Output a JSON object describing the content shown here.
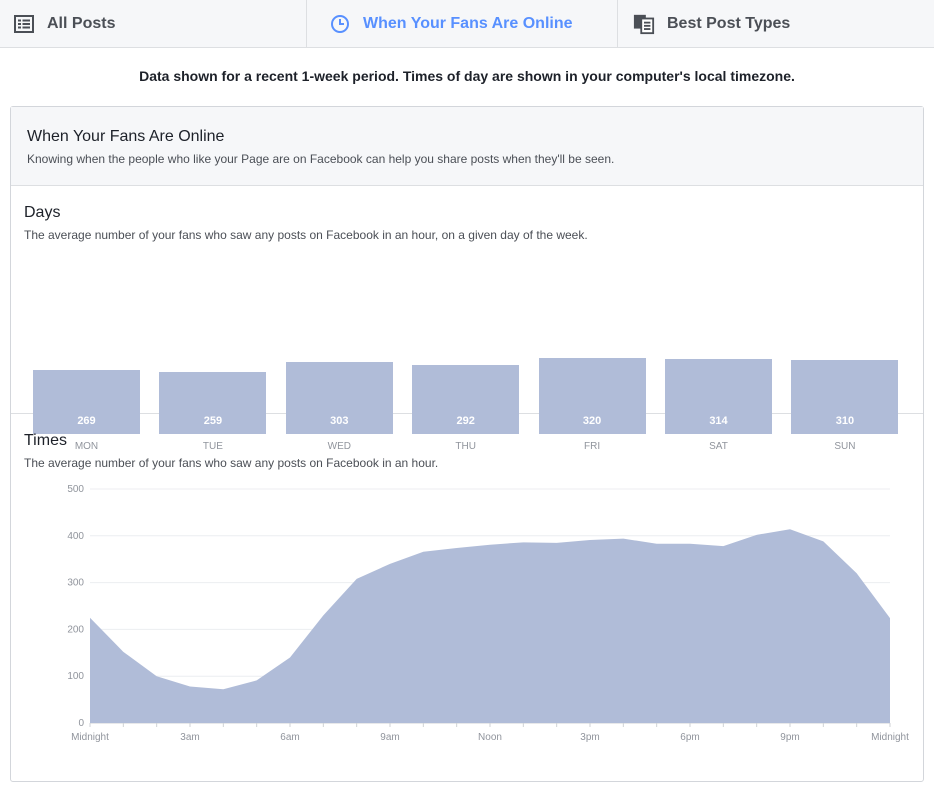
{
  "tabs": [
    {
      "label": "All Posts",
      "icon": "list-icon",
      "active": false
    },
    {
      "label": "When Your Fans Are Online",
      "icon": "clock-icon",
      "active": true
    },
    {
      "label": "Best Post Types",
      "icon": "post-types-icon",
      "active": false
    }
  ],
  "notice": "Data shown for a recent 1-week period. Times of day are shown in your computer's local timezone.",
  "card": {
    "title": "When Your Fans Are Online",
    "subtitle": "Knowing when the people who like your Page are on Facebook can help you share posts when they'll be seen."
  },
  "days_section": {
    "title": "Days",
    "subtitle": "The average number of your fans who saw any posts on Facebook in an hour, on a given day of the week."
  },
  "times_section": {
    "title": "Times",
    "subtitle": "The average number of your fans who saw any posts on Facebook in an hour."
  },
  "colors": {
    "accent": "#5890ff",
    "bar": "#b0bcd8",
    "area": "#b0bcd8"
  },
  "chart_data": [
    {
      "type": "bar",
      "categories": [
        "MON",
        "TUE",
        "WED",
        "THU",
        "FRI",
        "SAT",
        "SUN"
      ],
      "values": [
        269,
        259,
        303,
        292,
        320,
        314,
        310
      ],
      "value_labels": [
        "269",
        "259",
        "303",
        "292",
        "320",
        "314",
        "310"
      ]
    },
    {
      "type": "area",
      "x_ticks": [
        "Midnight",
        "3am",
        "6am",
        "9am",
        "Noon",
        "3pm",
        "6pm",
        "9pm",
        "Midnight"
      ],
      "y_ticks": [
        "0",
        "100",
        "200",
        "300",
        "400",
        "500"
      ],
      "ylim": [
        0,
        500
      ],
      "xlim": [
        0,
        24
      ],
      "grid": true,
      "x": [
        0,
        1,
        2,
        3,
        4,
        5,
        6,
        7,
        8,
        9,
        10,
        11,
        12,
        13,
        14,
        15,
        16,
        17,
        18,
        19,
        20,
        21,
        22,
        23,
        24
      ],
      "values": [
        225,
        152,
        100,
        78,
        72,
        91,
        140,
        230,
        308,
        340,
        366,
        374,
        381,
        386,
        385,
        391,
        394,
        383,
        383,
        378,
        402,
        414,
        388,
        320,
        224
      ]
    }
  ]
}
